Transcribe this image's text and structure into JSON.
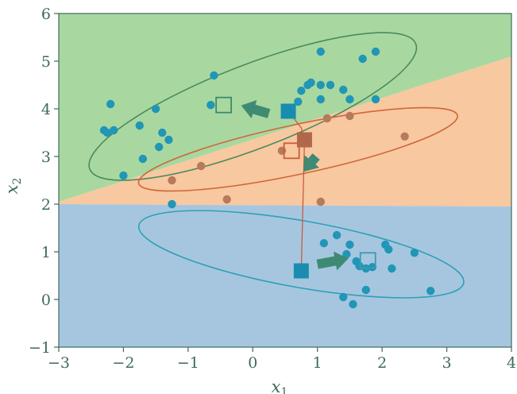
{
  "chart_data": {
    "type": "scatter",
    "title": "",
    "xlim": [
      -3,
      4
    ],
    "ylim": [
      -1,
      6
    ],
    "xticks": [
      "-3",
      "-2",
      "-1",
      "0",
      "1",
      "2",
      "3",
      "4"
    ],
    "yticks": [
      "-1",
      "0",
      "1",
      "2",
      "3",
      "4",
      "5",
      "6"
    ],
    "xlabel": {
      "main": "x",
      "sub": "1"
    },
    "ylabel": {
      "main": "x",
      "sub": "2"
    },
    "grid": false,
    "colors": {
      "green_region": "#a8d8a0",
      "orange_region": "#f8c8a0",
      "blue_region": "#a6c6e0",
      "green_ellipse": "#4a8a5e",
      "orange_ellipse": "#d2643a",
      "blue_ellipse": "#2ea0b8",
      "blue_points": "#2196b6",
      "brown_points": "#b67a5c",
      "arrow": "#3f8a72",
      "axis_text": "#3f6b58"
    },
    "regions": [
      {
        "name": "green",
        "polygon": [
          [
            -3,
            6
          ],
          [
            4,
            6
          ],
          [
            4,
            5.1
          ],
          [
            -3,
            2.05
          ]
        ]
      },
      {
        "name": "orange",
        "polygon": [
          [
            -3,
            2.05
          ],
          [
            4,
            5.1
          ],
          [
            4,
            1.95
          ],
          [
            -3,
            2.0
          ]
        ]
      },
      {
        "name": "blue",
        "polygon": [
          [
            -3,
            2.0
          ],
          [
            4,
            1.95
          ],
          [
            4,
            -1
          ],
          [
            -3,
            -1
          ]
        ]
      }
    ],
    "ellipses": [
      {
        "name": "green",
        "cx": 0.0,
        "cy": 4.05,
        "rx": 2.7,
        "ry": 0.88,
        "angle_deg": 21
      },
      {
        "name": "orange",
        "cx": 0.7,
        "cy": 3.15,
        "rx": 2.52,
        "ry": 0.52,
        "angle_deg": 12
      },
      {
        "name": "blue",
        "cx": 0.75,
        "cy": 0.95,
        "rx": 2.55,
        "ry": 0.7,
        "angle_deg": -10
      }
    ],
    "series": [
      {
        "group": "blue",
        "values": [
          [
            -2.2,
            4.1
          ],
          [
            -2.25,
            3.5
          ],
          [
            -2.3,
            3.55
          ],
          [
            -2.15,
            3.55
          ],
          [
            -1.75,
            3.65
          ],
          [
            -1.5,
            4.0
          ],
          [
            -1.4,
            3.5
          ],
          [
            -1.45,
            3.2
          ],
          [
            -1.3,
            3.35
          ],
          [
            -1.7,
            2.95
          ],
          [
            -2.0,
            2.6
          ],
          [
            -1.25,
            2.0
          ],
          [
            -0.6,
            4.7
          ],
          [
            -0.65,
            4.08
          ],
          [
            0.7,
            4.15
          ],
          [
            0.75,
            4.38
          ],
          [
            0.85,
            4.5
          ],
          [
            0.9,
            4.55
          ],
          [
            1.05,
            4.5
          ],
          [
            1.2,
            4.5
          ],
          [
            1.4,
            4.4
          ],
          [
            1.5,
            4.2
          ],
          [
            1.05,
            4.2
          ],
          [
            1.05,
            5.2
          ],
          [
            1.7,
            5.05
          ],
          [
            1.9,
            5.2
          ],
          [
            1.9,
            4.2
          ],
          [
            1.1,
            1.18
          ],
          [
            1.3,
            1.35
          ],
          [
            1.5,
            1.15
          ],
          [
            1.45,
            0.95
          ],
          [
            1.6,
            0.8
          ],
          [
            1.65,
            0.7
          ],
          [
            1.75,
            0.65
          ],
          [
            1.85,
            0.68
          ],
          [
            2.05,
            1.15
          ],
          [
            2.1,
            1.05
          ],
          [
            2.15,
            0.65
          ],
          [
            2.5,
            0.98
          ],
          [
            2.75,
            0.18
          ],
          [
            1.4,
            0.05
          ],
          [
            1.55,
            -0.1
          ],
          [
            1.75,
            0.2
          ]
        ]
      },
      {
        "group": "brown",
        "values": [
          [
            -1.25,
            2.5
          ],
          [
            -0.8,
            2.8
          ],
          [
            -0.4,
            2.1
          ],
          [
            0.45,
            3.12
          ],
          [
            0.8,
            3.4
          ],
          [
            1.15,
            3.8
          ],
          [
            1.5,
            3.85
          ],
          [
            1.05,
            2.05
          ],
          [
            2.35,
            3.42
          ]
        ]
      }
    ],
    "means": [
      {
        "name": "green-new",
        "x": -0.45,
        "y": 4.08,
        "filled": false,
        "color": "#3f8a6a"
      },
      {
        "name": "green-old",
        "x": 0.55,
        "y": 3.95,
        "filled": true,
        "color": "#1a8cb0"
      },
      {
        "name": "orange-new",
        "x": 0.6,
        "y": 3.12,
        "filled": false,
        "color": "#c95c3a"
      },
      {
        "name": "orange-old",
        "x": 0.8,
        "y": 3.35,
        "filled": true,
        "color": "#b0674c"
      },
      {
        "name": "blue-new",
        "x": 1.78,
        "y": 0.82,
        "filled": false,
        "color": "#3a9ab0"
      },
      {
        "name": "blue-old",
        "x": 0.75,
        "y": 0.6,
        "filled": true,
        "color": "#1a8cb0"
      }
    ],
    "arrows": [
      {
        "from": [
          0.25,
          3.9
        ],
        "to": [
          -0.18,
          4.07
        ]
      },
      {
        "from": [
          0.98,
          3.0
        ],
        "to": [
          0.78,
          2.68
        ]
      },
      {
        "from": [
          1.0,
          0.74
        ],
        "to": [
          1.48,
          0.86
        ]
      }
    ],
    "connectors": [
      {
        "color": "#c95c3a",
        "points": [
          [
            0.55,
            3.95
          ],
          [
            0.75,
            3.6
          ],
          [
            0.8,
            3.35
          ],
          [
            0.75,
            0.6
          ]
        ]
      }
    ]
  }
}
